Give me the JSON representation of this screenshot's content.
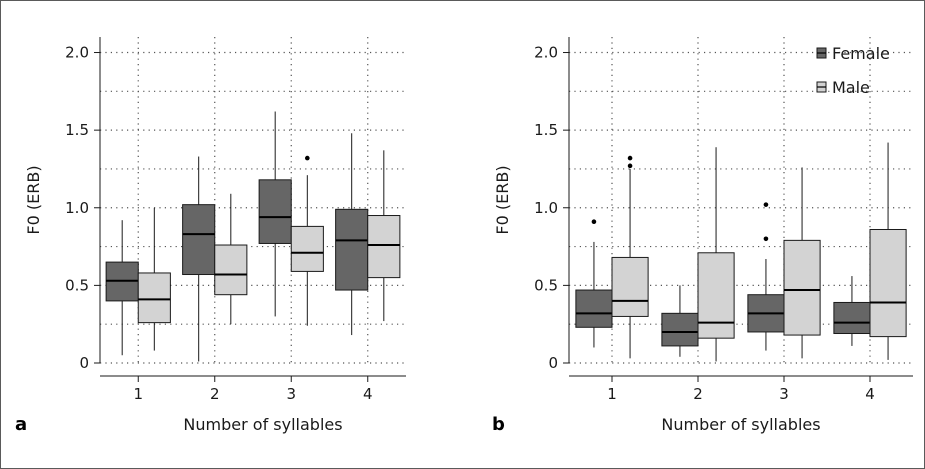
{
  "colors": {
    "female": "#666666",
    "male": "#d3d3d3",
    "line": "#1a1a1a",
    "grid": "#555555"
  },
  "legend": {
    "female": "Female",
    "male": "Male",
    "placement": "top-right"
  },
  "chart_data": [
    {
      "panel_label": "a",
      "type": "box",
      "categories": [
        "1",
        "2",
        "3",
        "4"
      ],
      "xlabel": "Number of syllables",
      "ylabel": "F0 (ERB)",
      "ylim": [
        0,
        2.1
      ],
      "yticks": [
        "0",
        "0.5",
        "1.0",
        "1.5",
        "2.0"
      ],
      "grid": true,
      "legend": false,
      "series": [
        {
          "name": "Female",
          "boxes": [
            {
              "category": "1",
              "whisker_low": 0.05,
              "q1": 0.4,
              "median": 0.53,
              "q3": 0.65,
              "whisker_high": 0.92,
              "outliers": []
            },
            {
              "category": "2",
              "whisker_low": 0.01,
              "q1": 0.57,
              "median": 0.83,
              "q3": 1.02,
              "whisker_high": 1.33,
              "outliers": []
            },
            {
              "category": "3",
              "whisker_low": 0.3,
              "q1": 0.77,
              "median": 0.94,
              "q3": 1.18,
              "whisker_high": 1.62,
              "outliers": []
            },
            {
              "category": "4",
              "whisker_low": 0.18,
              "q1": 0.47,
              "median": 0.79,
              "q3": 0.99,
              "whisker_high": 1.48,
              "outliers": []
            }
          ]
        },
        {
          "name": "Male",
          "boxes": [
            {
              "category": "1",
              "whisker_low": 0.08,
              "q1": 0.26,
              "median": 0.41,
              "q3": 0.58,
              "whisker_high": 1.0,
              "outliers": []
            },
            {
              "category": "2",
              "whisker_low": 0.25,
              "q1": 0.44,
              "median": 0.57,
              "q3": 0.76,
              "whisker_high": 1.09,
              "outliers": []
            },
            {
              "category": "3",
              "whisker_low": 0.24,
              "q1": 0.59,
              "median": 0.71,
              "q3": 0.88,
              "whisker_high": 1.21,
              "outliers": [
                1.32
              ]
            },
            {
              "category": "4",
              "whisker_low": 0.27,
              "q1": 0.55,
              "median": 0.76,
              "q3": 0.95,
              "whisker_high": 1.37,
              "outliers": []
            }
          ]
        }
      ]
    },
    {
      "panel_label": "b",
      "type": "box",
      "categories": [
        "1",
        "2",
        "3",
        "4"
      ],
      "xlabel": "Number of syllables",
      "ylabel": "F0 (ERB)",
      "ylim": [
        0,
        2.1
      ],
      "yticks": [
        "0",
        "0.5",
        "1.0",
        "1.5",
        "2.0"
      ],
      "grid": true,
      "legend": true,
      "series": [
        {
          "name": "Female",
          "boxes": [
            {
              "category": "1",
              "whisker_low": 0.1,
              "q1": 0.23,
              "median": 0.32,
              "q3": 0.47,
              "whisker_high": 0.78,
              "outliers": [
                0.91
              ]
            },
            {
              "category": "2",
              "whisker_low": 0.04,
              "q1": 0.11,
              "median": 0.2,
              "q3": 0.32,
              "whisker_high": 0.5,
              "outliers": []
            },
            {
              "category": "3",
              "whisker_low": 0.08,
              "q1": 0.2,
              "median": 0.32,
              "q3": 0.44,
              "whisker_high": 0.67,
              "outliers": [
                0.8,
                1.02
              ]
            },
            {
              "category": "4",
              "whisker_low": 0.11,
              "q1": 0.19,
              "median": 0.26,
              "q3": 0.39,
              "whisker_high": 0.56,
              "outliers": []
            }
          ]
        },
        {
          "name": "Male",
          "boxes": [
            {
              "category": "1",
              "whisker_low": 0.03,
              "q1": 0.3,
              "median": 0.4,
              "q3": 0.68,
              "whisker_high": 1.25,
              "outliers": [
                1.27,
                1.32
              ]
            },
            {
              "category": "2",
              "whisker_low": 0.01,
              "q1": 0.16,
              "median": 0.26,
              "q3": 0.71,
              "whisker_high": 1.39,
              "outliers": []
            },
            {
              "category": "3",
              "whisker_low": 0.03,
              "q1": 0.18,
              "median": 0.47,
              "q3": 0.79,
              "whisker_high": 1.26,
              "outliers": []
            },
            {
              "category": "4",
              "whisker_low": 0.02,
              "q1": 0.17,
              "median": 0.39,
              "q3": 0.86,
              "whisker_high": 1.42,
              "outliers": []
            }
          ]
        }
      ]
    }
  ]
}
